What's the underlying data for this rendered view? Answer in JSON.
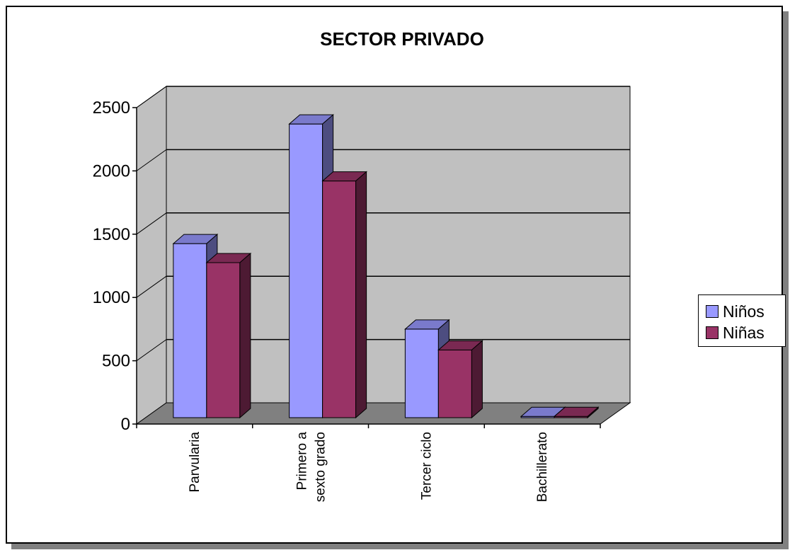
{
  "chart_data": {
    "type": "bar",
    "title": "SECTOR PRIVADO",
    "categories": [
      "Parvularia",
      "Primero a sexto grado",
      "Tercer ciclo",
      "Bachillerato"
    ],
    "category_lines": [
      [
        "Parvularia"
      ],
      [
        "Primero a",
        "sexto grado"
      ],
      [
        "Tercer ciclo"
      ],
      [
        "Bachillerato"
      ]
    ],
    "series": [
      {
        "name": "Niños",
        "values": [
          1375,
          2320,
          700,
          10
        ],
        "color": "#9999FF"
      },
      {
        "name": "Niñas",
        "values": [
          1225,
          1870,
          535,
          10
        ],
        "color": "#993366"
      }
    ],
    "ylim": [
      0,
      2500
    ],
    "yticks": [
      0,
      500,
      1000,
      1500,
      2000,
      2500
    ],
    "grid": true,
    "legend_position": "right",
    "wall_color": "#C0C0C0",
    "floor_color": "#808080"
  }
}
